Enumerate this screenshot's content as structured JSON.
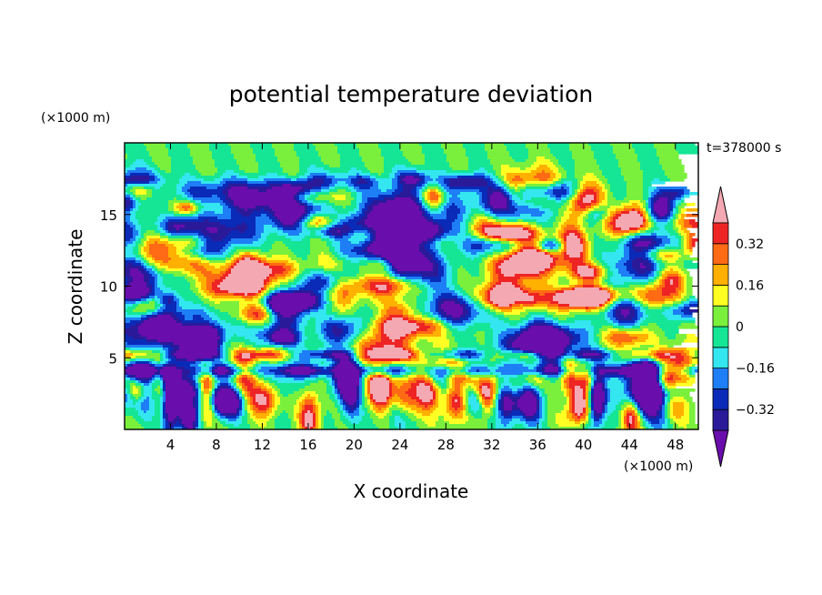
{
  "chart_data": {
    "type": "heatmap",
    "title": "potential temperature deviation",
    "xlabel": "X coordinate",
    "ylabel": "Z coordinate",
    "x_unit": "(×1000 m)",
    "y_unit": "(×1000 m)",
    "time_label": "t=378000 s",
    "xlim": [
      0,
      50
    ],
    "ylim": [
      0,
      20
    ],
    "xticks": [
      4,
      8,
      12,
      16,
      20,
      24,
      28,
      32,
      36,
      40,
      44,
      48
    ],
    "yticks": [
      5,
      10,
      15
    ],
    "colorbar": {
      "levels": [
        -0.4,
        -0.32,
        -0.24,
        -0.16,
        -0.08,
        0,
        0.08,
        0.16,
        0.24,
        0.32,
        0.4
      ],
      "labeled_ticks": [
        0.32,
        0.16,
        0,
        -0.16,
        -0.32
      ],
      "tick_labels": [
        "0.32",
        "0.16",
        "0",
        "−0.16",
        "−0.32"
      ],
      "colors": [
        "#6a0dad",
        "#2a1a9a",
        "#0a2ab8",
        "#1e7ef5",
        "#33e6ef",
        "#14e696",
        "#7af03c",
        "#ffff24",
        "#ffb000",
        "#ff6a14",
        "#ee2424",
        "#f4a8b2"
      ]
    }
  }
}
